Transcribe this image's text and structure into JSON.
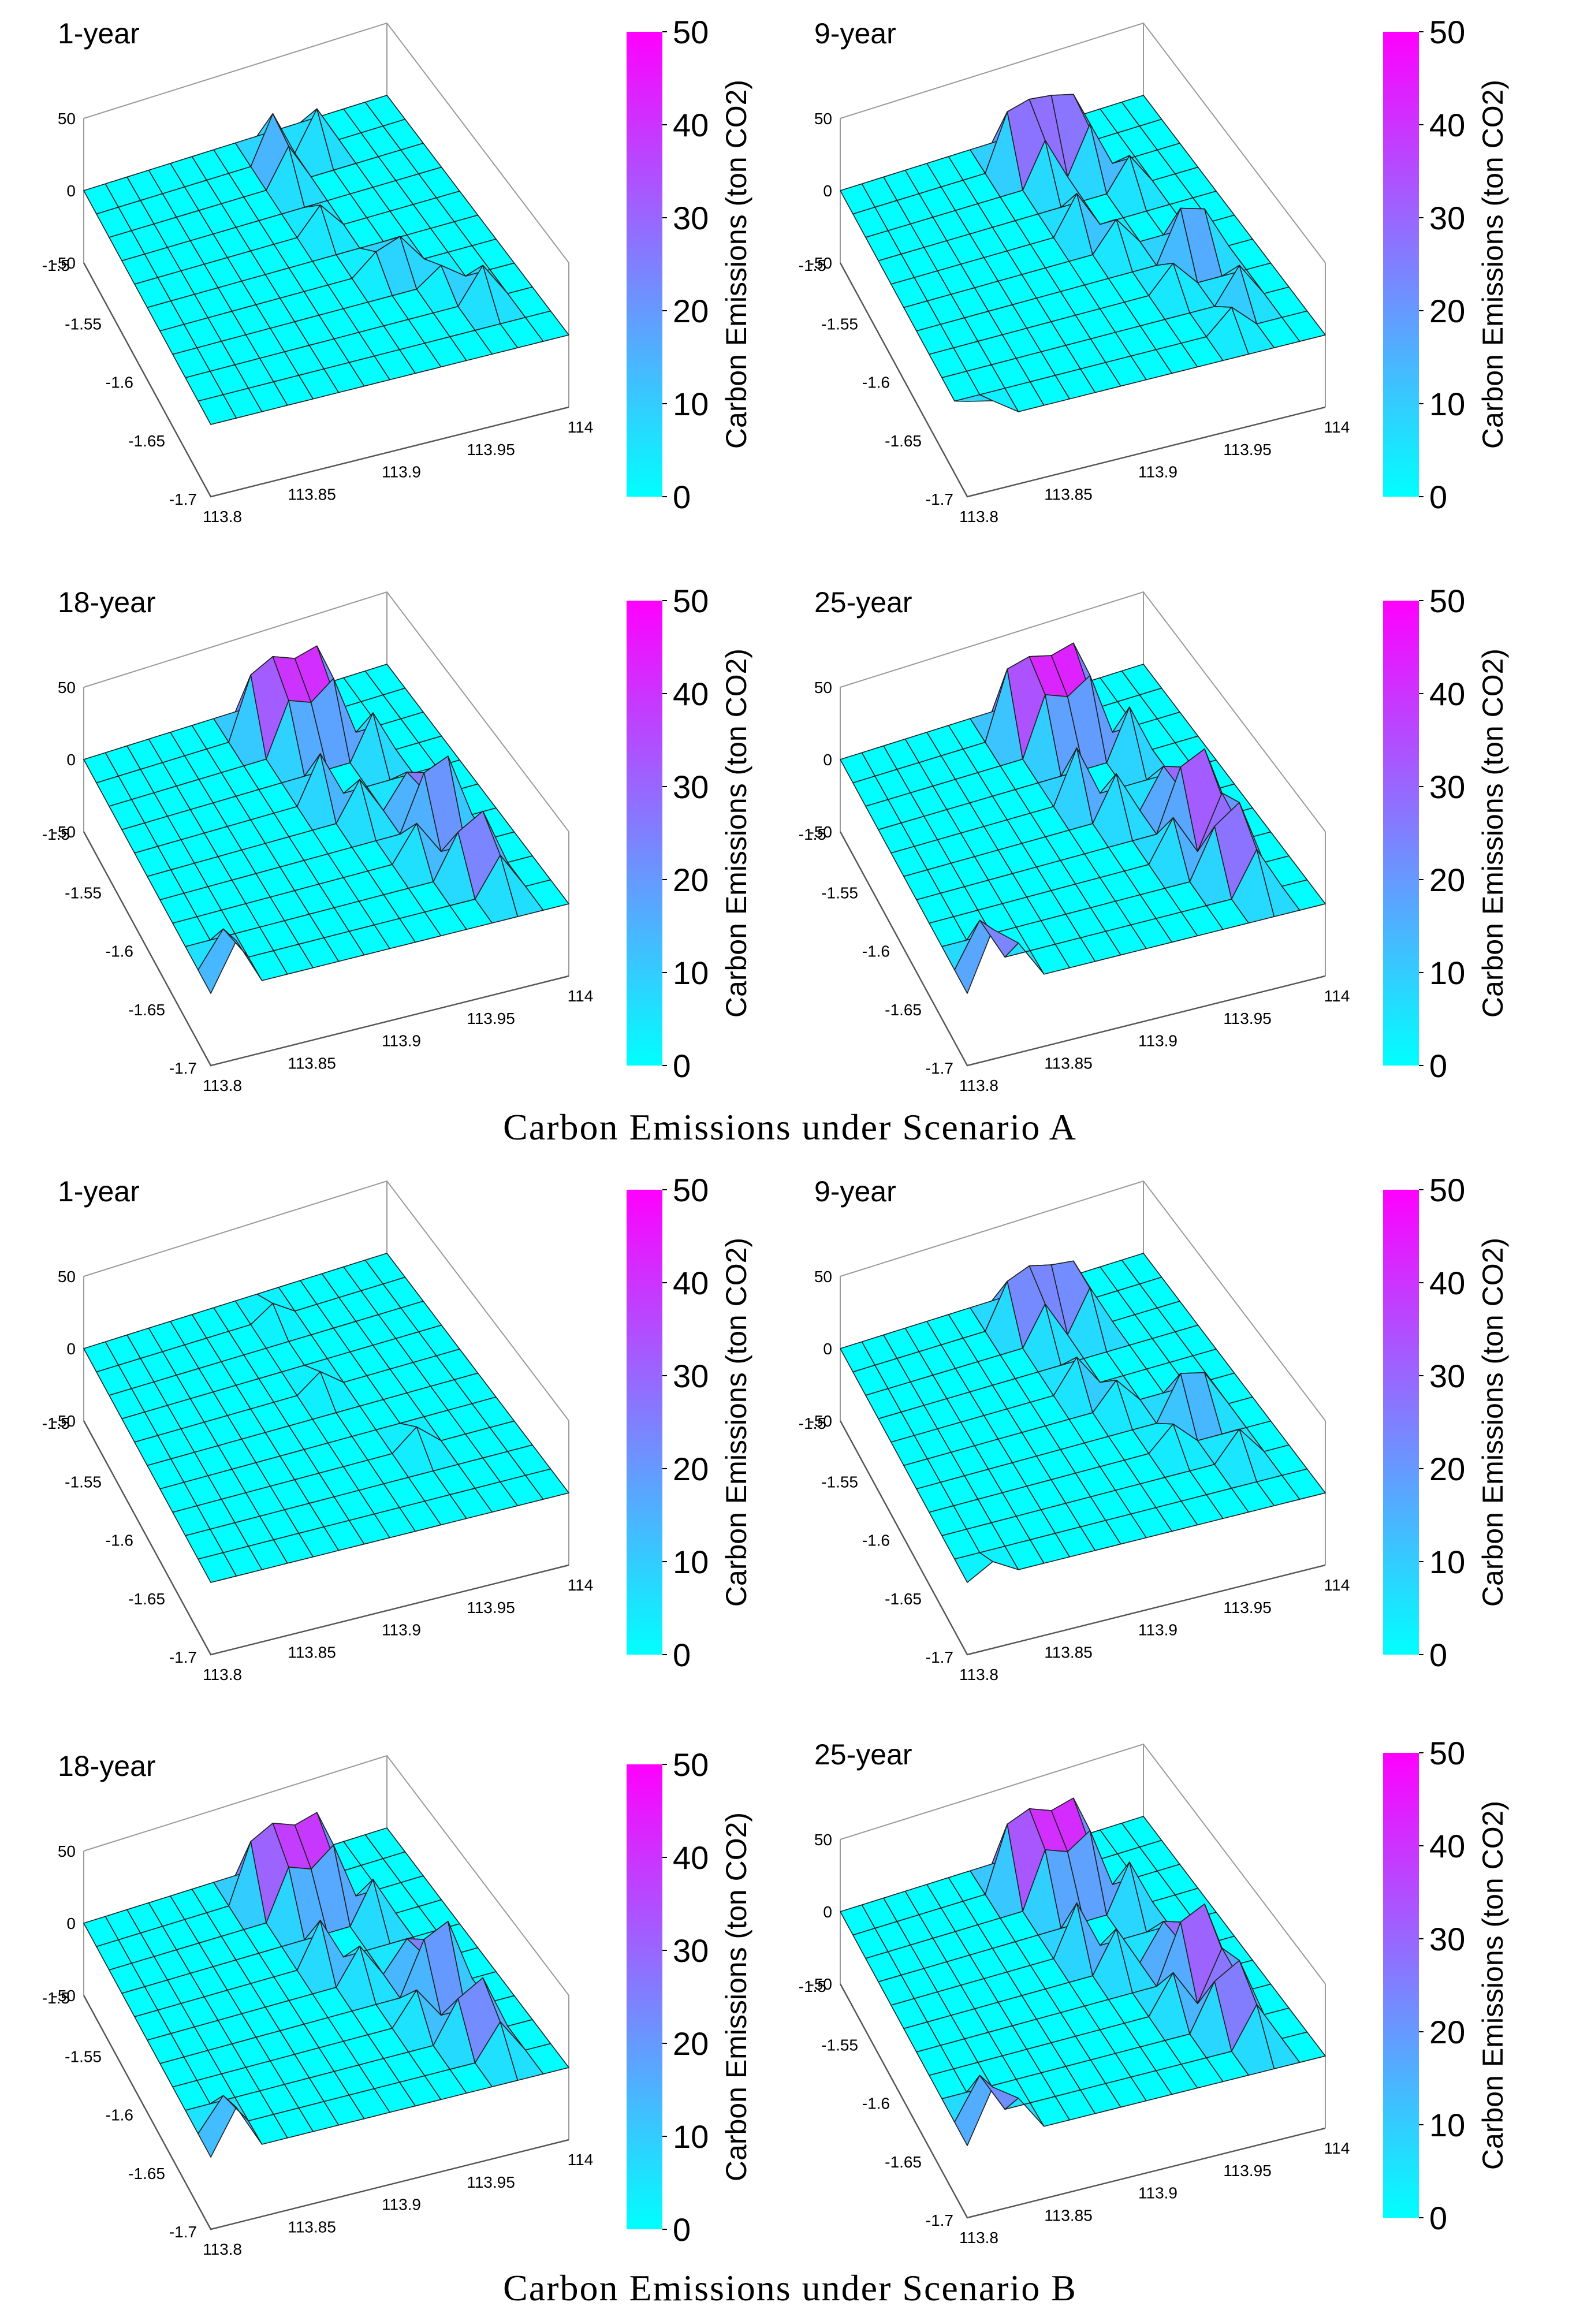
{
  "figure": {
    "caption_a": "Carbon Emissions under Scenario A",
    "caption_b": "Carbon Emissions under Scenario B"
  },
  "colors": {
    "low": "#00ffff",
    "high": "#ff00ff",
    "gridline": "#202020",
    "box": "#9a9a9a"
  },
  "chart_data": [
    {
      "type": "surface3d",
      "scenario": "A",
      "title": "1-year",
      "xlabel": "",
      "ylabel": "",
      "zlabel": "",
      "x_ticks": [
        "113.8",
        "113.85",
        "113.9",
        "113.95",
        "114"
      ],
      "y_ticks": [
        "-1.5",
        "-1.55",
        "-1.6",
        "-1.65",
        "-1.7"
      ],
      "z_ticks": [
        "50",
        "0",
        "-50"
      ],
      "zlim": [
        -50,
        50
      ],
      "grid": [
        10,
        14
      ],
      "colorbar": {
        "label": "Carbon Emissions (ton CO2)",
        "ticks": [
          "50",
          "40",
          "30",
          "20",
          "10",
          "0"
        ],
        "range": [
          0,
          50
        ]
      },
      "peaks": [
        {
          "row": 9,
          "col": 8,
          "value": 32
        },
        {
          "row": 8,
          "col": 8,
          "value": 26
        },
        {
          "row": 9,
          "col": 10,
          "value": 26
        },
        {
          "row": 6,
          "col": 8,
          "value": 18
        },
        {
          "row": 4,
          "col": 9,
          "value": 14
        },
        {
          "row": 3,
          "col": 11,
          "value": 12
        },
        {
          "row": 2,
          "col": 12,
          "value": 24
        },
        {
          "row": 4,
          "col": 10,
          "value": 20
        }
      ]
    },
    {
      "type": "surface3d",
      "scenario": "A",
      "title": "9-year",
      "xlabel": "",
      "ylabel": "",
      "zlabel": "",
      "x_ticks": [
        "113.8",
        "113.85",
        "113.9",
        "113.95",
        "114"
      ],
      "y_ticks": [
        "-1.5",
        "-1.55",
        "-1.6",
        "-1.65",
        "-1.7"
      ],
      "z_ticks": [
        "50",
        "0",
        "-50"
      ],
      "zlim": [
        -50,
        50
      ],
      "grid": [
        10,
        14
      ],
      "colorbar": {
        "label": "Carbon Emissions (ton CO2)",
        "ticks": [
          "50",
          "40",
          "30",
          "20",
          "10",
          "0"
        ],
        "range": [
          0,
          50
        ]
      },
      "peaks": [
        {
          "row": 9,
          "col": 7,
          "value": 38
        },
        {
          "row": 9,
          "col": 8,
          "value": 42
        },
        {
          "row": 9,
          "col": 9,
          "value": 40
        },
        {
          "row": 9,
          "col": 10,
          "value": 36
        },
        {
          "row": 8,
          "col": 8,
          "value": 30
        },
        {
          "row": 8,
          "col": 10,
          "value": 32
        },
        {
          "row": 7,
          "col": 11,
          "value": 22
        },
        {
          "row": 6,
          "col": 8,
          "value": 26
        },
        {
          "row": 5,
          "col": 9,
          "value": 20
        },
        {
          "row": 4,
          "col": 11,
          "value": 35
        },
        {
          "row": 4,
          "col": 12,
          "value": 30
        },
        {
          "row": 3,
          "col": 10,
          "value": 18
        },
        {
          "row": 2,
          "col": 12,
          "value": 24
        },
        {
          "row": 1,
          "col": 11,
          "value": 16
        },
        {
          "row": 0,
          "col": 0,
          "value": 16
        },
        {
          "row": 0,
          "col": 1,
          "value": 12
        }
      ]
    },
    {
      "type": "surface3d",
      "scenario": "A",
      "title": "18-year",
      "xlabel": "",
      "ylabel": "",
      "zlabel": "",
      "x_ticks": [
        "113.8",
        "113.85",
        "113.9",
        "113.95",
        "114"
      ],
      "y_ticks": [
        "-1.5",
        "-1.55",
        "-1.6",
        "-1.65",
        "-1.7"
      ],
      "z_ticks": [
        "50",
        "0",
        "-50"
      ],
      "zlim": [
        -50,
        50
      ],
      "grid": [
        10,
        14
      ],
      "colorbar": {
        "label": "Carbon Emissions (ton CO2)",
        "ticks": [
          "50",
          "40",
          "30",
          "20",
          "10",
          "0"
        ],
        "range": [
          0,
          50
        ]
      },
      "peaks": [
        {
          "row": 9,
          "col": 7,
          "value": 42
        },
        {
          "row": 9,
          "col": 8,
          "value": 50
        },
        {
          "row": 9,
          "col": 9,
          "value": 44
        },
        {
          "row": 9,
          "col": 10,
          "value": 48
        },
        {
          "row": 8,
          "col": 8,
          "value": 36
        },
        {
          "row": 8,
          "col": 9,
          "value": 30
        },
        {
          "row": 8,
          "col": 10,
          "value": 42
        },
        {
          "row": 7,
          "col": 11,
          "value": 30
        },
        {
          "row": 6,
          "col": 8,
          "value": 32
        },
        {
          "row": 5,
          "col": 9,
          "value": 26
        },
        {
          "row": 5,
          "col": 11,
          "value": 22
        },
        {
          "row": 4,
          "col": 12,
          "value": 45
        },
        {
          "row": 4,
          "col": 11,
          "value": 38
        },
        {
          "row": 3,
          "col": 10,
          "value": 24
        },
        {
          "row": 2,
          "col": 12,
          "value": 40
        },
        {
          "row": 2,
          "col": 11,
          "value": 30
        },
        {
          "row": 1,
          "col": 12,
          "value": 26
        },
        {
          "row": 0,
          "col": 1,
          "value": 32
        },
        {
          "row": 1,
          "col": 1,
          "value": 24
        }
      ]
    },
    {
      "type": "surface3d",
      "scenario": "A",
      "title": "25-year",
      "xlabel": "",
      "ylabel": "",
      "zlabel": "",
      "x_ticks": [
        "113.8",
        "113.85",
        "113.9",
        "113.95",
        "114"
      ],
      "y_ticks": [
        "-1.5",
        "-1.55",
        "-1.6",
        "-1.65",
        "-1.7"
      ],
      "z_ticks": [
        "50",
        "0",
        "-50"
      ],
      "zlim": [
        -50,
        50
      ],
      "grid": [
        10,
        14
      ],
      "colorbar": {
        "label": "Carbon Emissions (ton CO2)",
        "ticks": [
          "50",
          "40",
          "30",
          "20",
          "10",
          "0"
        ],
        "range": [
          0,
          50
        ]
      },
      "peaks": [
        {
          "row": 9,
          "col": 7,
          "value": 46
        },
        {
          "row": 9,
          "col": 8,
          "value": 50
        },
        {
          "row": 9,
          "col": 9,
          "value": 46
        },
        {
          "row": 9,
          "col": 10,
          "value": 50
        },
        {
          "row": 8,
          "col": 8,
          "value": 40
        },
        {
          "row": 8,
          "col": 9,
          "value": 34
        },
        {
          "row": 8,
          "col": 10,
          "value": 44
        },
        {
          "row": 7,
          "col": 11,
          "value": 34
        },
        {
          "row": 6,
          "col": 8,
          "value": 36
        },
        {
          "row": 5,
          "col": 9,
          "value": 30
        },
        {
          "row": 5,
          "col": 11,
          "value": 26
        },
        {
          "row": 4,
          "col": 12,
          "value": 50
        },
        {
          "row": 4,
          "col": 11,
          "value": 42
        },
        {
          "row": 3,
          "col": 10,
          "value": 28
        },
        {
          "row": 3,
          "col": 12,
          "value": 36
        },
        {
          "row": 2,
          "col": 12,
          "value": 46
        },
        {
          "row": 2,
          "col": 11,
          "value": 34
        },
        {
          "row": 1,
          "col": 12,
          "value": 30
        },
        {
          "row": 0,
          "col": 1,
          "value": 40
        },
        {
          "row": 0,
          "col": 2,
          "value": 26
        },
        {
          "row": 1,
          "col": 1,
          "value": 30
        }
      ]
    },
    {
      "type": "surface3d",
      "scenario": "B",
      "title": "1-year",
      "xlabel": "",
      "ylabel": "",
      "zlabel": "",
      "x_ticks": [
        "113.8",
        "113.85",
        "113.9",
        "113.95",
        "114"
      ],
      "y_ticks": [
        "-1.5",
        "-1.55",
        "-1.6",
        "-1.65",
        "-1.7"
      ],
      "z_ticks": [
        "50",
        "0",
        "-50"
      ],
      "zlim": [
        -50,
        50
      ],
      "grid": [
        10,
        14
      ],
      "colorbar": {
        "label": "Carbon Emissions (ton CO2)",
        "ticks": [
          "50",
          "40",
          "30",
          "20",
          "10",
          "0"
        ],
        "range": [
          0,
          50
        ]
      },
      "peaks": [
        {
          "row": 9,
          "col": 8,
          "value": 10
        },
        {
          "row": 6,
          "col": 8,
          "value": 12
        },
        {
          "row": 3,
          "col": 10,
          "value": 14
        }
      ]
    },
    {
      "type": "surface3d",
      "scenario": "B",
      "title": "9-year",
      "xlabel": "",
      "ylabel": "",
      "zlabel": "",
      "x_ticks": [
        "113.8",
        "113.85",
        "113.9",
        "113.95",
        "114"
      ],
      "y_ticks": [
        "-1.5",
        "-1.55",
        "-1.6",
        "-1.65",
        "-1.7"
      ],
      "z_ticks": [
        "50",
        "0",
        "-50"
      ],
      "zlim": [
        -50,
        50
      ],
      "grid": [
        10,
        14
      ],
      "colorbar": {
        "label": "Carbon Emissions (ton CO2)",
        "ticks": [
          "50",
          "40",
          "30",
          "20",
          "10",
          "0"
        ],
        "range": [
          0,
          50
        ]
      },
      "peaks": [
        {
          "row": 9,
          "col": 7,
          "value": 30
        },
        {
          "row": 9,
          "col": 8,
          "value": 36
        },
        {
          "row": 9,
          "col": 9,
          "value": 32
        },
        {
          "row": 9,
          "col": 10,
          "value": 30
        },
        {
          "row": 8,
          "col": 8,
          "value": 26
        },
        {
          "row": 8,
          "col": 10,
          "value": 28
        },
        {
          "row": 6,
          "col": 8,
          "value": 22
        },
        {
          "row": 5,
          "col": 9,
          "value": 18
        },
        {
          "row": 4,
          "col": 11,
          "value": 30
        },
        {
          "row": 4,
          "col": 12,
          "value": 26
        },
        {
          "row": 3,
          "col": 10,
          "value": 16
        },
        {
          "row": 2,
          "col": 12,
          "value": 20
        },
        {
          "row": 0,
          "col": 1,
          "value": 10
        }
      ]
    },
    {
      "type": "surface3d",
      "scenario": "B",
      "title": "18-year",
      "xlabel": "",
      "ylabel": "",
      "zlabel": "",
      "x_ticks": [
        "113.8",
        "113.85",
        "113.9",
        "113.95",
        "114"
      ],
      "y_ticks": [
        "-1.5",
        "-1.55",
        "-1.6",
        "-1.65",
        "-1.7"
      ],
      "z_ticks": [
        "50",
        "0",
        "-50"
      ],
      "zlim": [
        -50,
        50
      ],
      "grid": [
        10,
        14
      ],
      "colorbar": {
        "label": "Carbon Emissions (ton CO2)",
        "ticks": [
          "50",
          "40",
          "30",
          "20",
          "10",
          "0"
        ],
        "range": [
          0,
          50
        ]
      },
      "peaks": [
        {
          "row": 9,
          "col": 7,
          "value": 40
        },
        {
          "row": 9,
          "col": 8,
          "value": 48
        },
        {
          "row": 9,
          "col": 9,
          "value": 42
        },
        {
          "row": 9,
          "col": 10,
          "value": 46
        },
        {
          "row": 8,
          "col": 8,
          "value": 34
        },
        {
          "row": 8,
          "col": 9,
          "value": 28
        },
        {
          "row": 8,
          "col": 10,
          "value": 40
        },
        {
          "row": 7,
          "col": 11,
          "value": 28
        },
        {
          "row": 6,
          "col": 8,
          "value": 30
        },
        {
          "row": 5,
          "col": 9,
          "value": 24
        },
        {
          "row": 5,
          "col": 11,
          "value": 20
        },
        {
          "row": 4,
          "col": 12,
          "value": 44
        },
        {
          "row": 4,
          "col": 11,
          "value": 36
        },
        {
          "row": 3,
          "col": 10,
          "value": 22
        },
        {
          "row": 2,
          "col": 12,
          "value": 38
        },
        {
          "row": 2,
          "col": 11,
          "value": 28
        },
        {
          "row": 1,
          "col": 12,
          "value": 24
        },
        {
          "row": 0,
          "col": 1,
          "value": 30
        },
        {
          "row": 1,
          "col": 1,
          "value": 22
        }
      ]
    },
    {
      "type": "surface3d",
      "scenario": "B",
      "title": "25-year",
      "xlabel": "",
      "ylabel": "",
      "zlabel": "",
      "x_ticks": [
        "113.8",
        "113.85",
        "113.9",
        "113.95",
        "114"
      ],
      "y_ticks": [
        "-1.5",
        "-1.55",
        "-1.6",
        "-1.65",
        "-1.7"
      ],
      "z_ticks": [
        "50",
        "0",
        "-50"
      ],
      "zlim": [
        -50,
        50
      ],
      "grid": [
        10,
        14
      ],
      "colorbar": {
        "label": "Carbon Emissions (ton CO2)",
        "ticks": [
          "50",
          "40",
          "30",
          "20",
          "10",
          "0"
        ],
        "range": [
          0,
          50
        ]
      },
      "peaks": [
        {
          "row": 9,
          "col": 7,
          "value": 44
        },
        {
          "row": 9,
          "col": 8,
          "value": 50
        },
        {
          "row": 9,
          "col": 9,
          "value": 44
        },
        {
          "row": 9,
          "col": 10,
          "value": 48
        },
        {
          "row": 8,
          "col": 8,
          "value": 38
        },
        {
          "row": 8,
          "col": 9,
          "value": 32
        },
        {
          "row": 8,
          "col": 10,
          "value": 42
        },
        {
          "row": 7,
          "col": 11,
          "value": 32
        },
        {
          "row": 6,
          "col": 8,
          "value": 34
        },
        {
          "row": 5,
          "col": 9,
          "value": 28
        },
        {
          "row": 5,
          "col": 11,
          "value": 24
        },
        {
          "row": 4,
          "col": 12,
          "value": 48
        },
        {
          "row": 4,
          "col": 11,
          "value": 40
        },
        {
          "row": 3,
          "col": 10,
          "value": 26
        },
        {
          "row": 3,
          "col": 12,
          "value": 34
        },
        {
          "row": 2,
          "col": 12,
          "value": 42
        },
        {
          "row": 2,
          "col": 11,
          "value": 32
        },
        {
          "row": 1,
          "col": 12,
          "value": 28
        },
        {
          "row": 0,
          "col": 1,
          "value": 36
        },
        {
          "row": 0,
          "col": 2,
          "value": 24
        },
        {
          "row": 1,
          "col": 1,
          "value": 28
        }
      ]
    }
  ]
}
